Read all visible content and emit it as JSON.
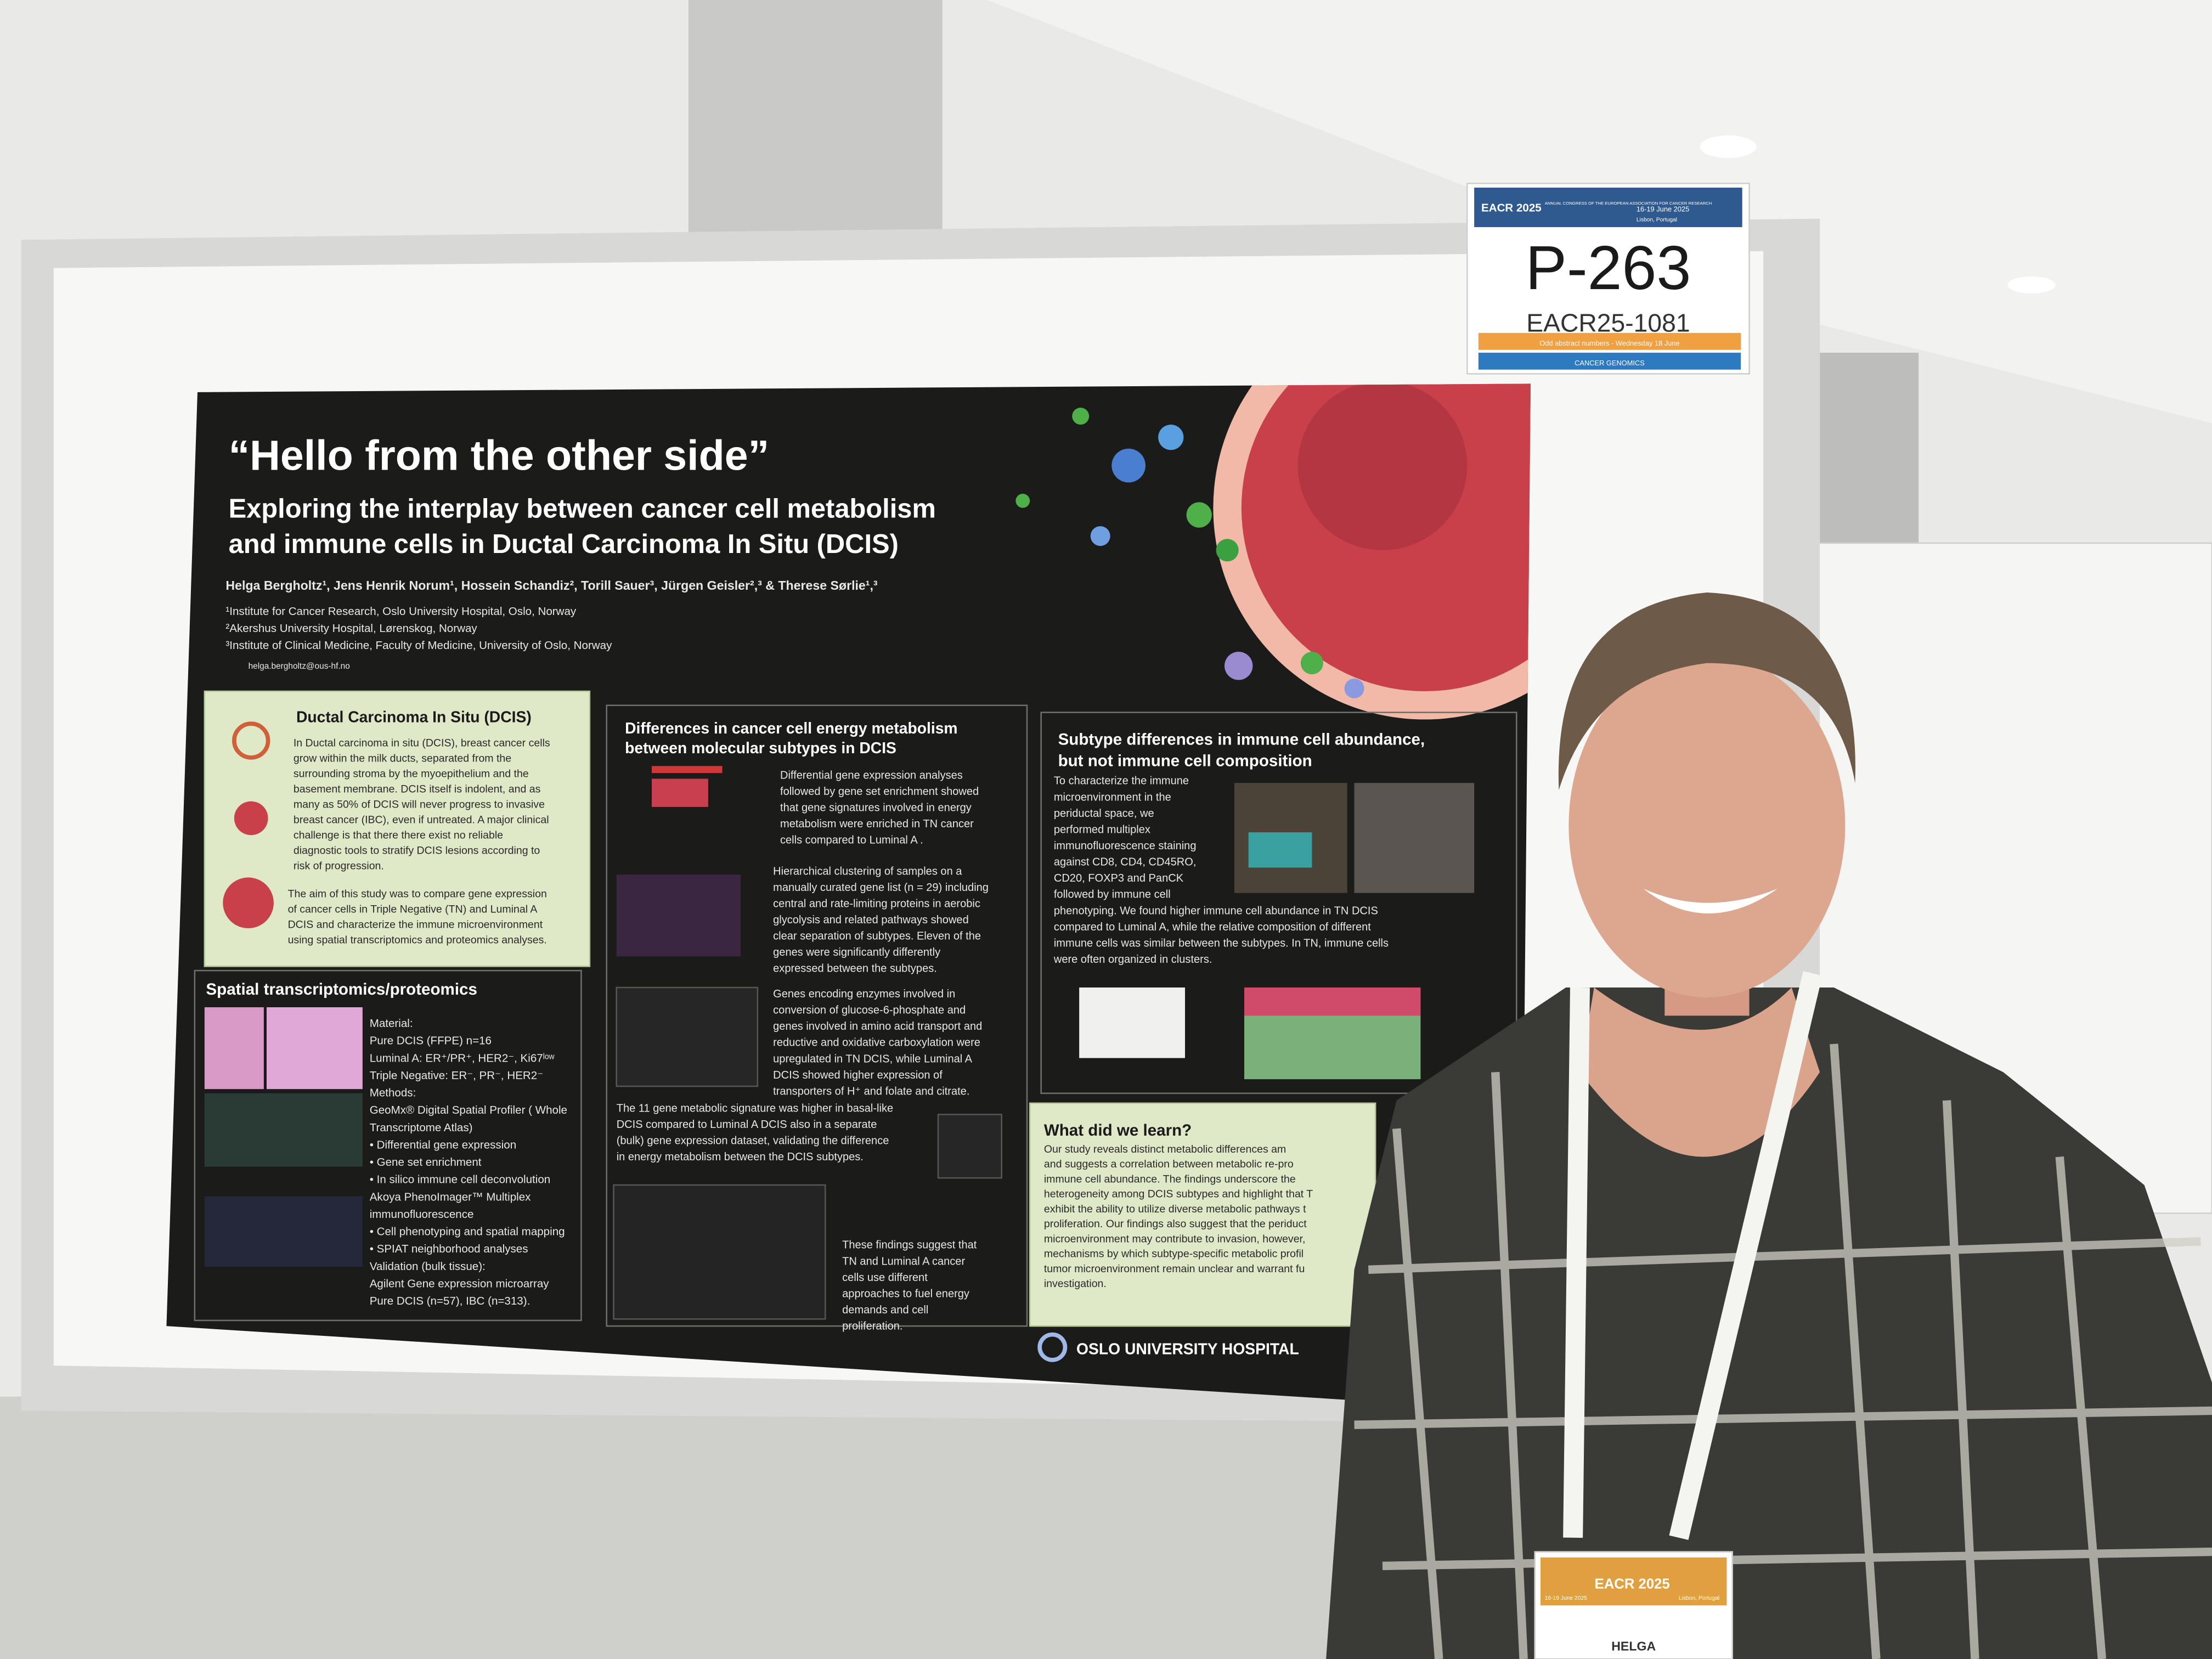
{
  "sign": {
    "logo": "EACR 2025",
    "congress": "ANNUAL CONGRESS OF THE EUROPEAN ASSOCIATION FOR CANCER RESEARCH",
    "dates": "16-19 June 2025",
    "place": "Lisbon, Portugal",
    "code": "P-263",
    "abstract": "EACR25-1081",
    "session": "Odd abstract numbers - Wednesday 18 June",
    "track": "CANCER GENOMICS"
  },
  "poster": {
    "title": "“Hello from the other side”",
    "subtitle": [
      "Exploring the interplay between cancer cell metabolism",
      "and immune cells in Ductal Carcinoma In Situ (DCIS)"
    ],
    "authors": "Helga Bergholtz¹, Jens Henrik Norum¹, Hossein Schandiz², Torill Sauer³, Jürgen Geisler²,³ & Therese Sørlie¹,³",
    "affiliations": [
      "¹Institute for Cancer Research, Oslo University Hospital, Oslo, Norway",
      "²Akershus University Hospital, Lørenskog, Norway",
      "³Institute of Clinical Medicine, Faculty of Medicine, University of Oslo, Norway"
    ],
    "email": "helga.bergholtz@ous-hf.no",
    "dcis": {
      "heading": "Ductal Carcinoma In Situ (DCIS)",
      "lines": [
        "In Ductal carcinoma in situ (DCIS), breast cancer cells",
        "grow within the milk ducts, separated from the",
        "surrounding stroma by the myoepithelium and the",
        "basement membrane. DCIS itself is indolent, and as",
        "many as 50% of DCIS will never progress to invasive",
        "breast cancer (IBC), even if untreated. A major clinical",
        "challenge is that there there exist no reliable",
        "diagnostic tools to stratify DCIS lesions according to",
        "risk of progression."
      ],
      "aim": [
        "The aim of this study was to compare gene expression",
        "of cancer cells in Triple Negative (TN) and Luminal A",
        "DCIS and characterize the immune microenvironment",
        "using spatial transcriptomics and proteomics analyses."
      ]
    },
    "spatial": {
      "heading": "Spatial transcriptomics/proteomics",
      "lines": [
        "Material:",
        "Pure DCIS (FFPE) n=16",
        "Luminal A: ER⁺/PR⁺, HER2⁻, Ki67ˡᵒʷ",
        "Triple Negative: ER⁻, PR⁻, HER2⁻",
        "Methods:",
        "GeoMx® Digital Spatial Profiler ( Whole",
        "Transcriptome Atlas)",
        "• Differential gene expression",
        "• Gene set enrichment",
        "• In silico immune cell deconvolution",
        "Akoya PhenoImager™ Multiplex",
        "immunofluorescence",
        "• Cell phenotyping and spatial mapping",
        "• SPIAT neighborhood analyses",
        "Validation (bulk tissue):",
        "Agilent Gene expression microarray",
        "Pure DCIS (n=57), IBC (n=313)."
      ]
    },
    "metabolism": {
      "heading": [
        "Differences in cancer cell energy metabolism",
        "between molecular subtypes in DCIS"
      ],
      "p1": [
        "Differential gene expression analyses",
        "followed by gene set enrichment showed",
        "that gene signatures involved in energy",
        "metabolism were enriched in TN cancer",
        "cells compared to Luminal A ."
      ],
      "p2": [
        "Hierarchical clustering of samples on a",
        "manually curated gene list (n = 29) including",
        "central and rate-limiting proteins in aerobic",
        "glycolysis and related pathways showed",
        "clear separation of subtypes. Eleven of the",
        "genes were significantly differently",
        "expressed between the subtypes."
      ],
      "p3": [
        "Genes encoding enzymes involved in",
        "conversion of glucose-6-phosphate and",
        "genes involved in amino acid transport and",
        "reductive and oxidative carboxylation were",
        "upregulated in TN DCIS, while Luminal A",
        "DCIS showed higher expression of",
        "transporters of H⁺ and folate and citrate."
      ],
      "p4": [
        "The 11 gene metabolic signature was higher in basal-like",
        "DCIS compared to Luminal A DCIS also in a separate",
        "(bulk) gene expression dataset, validating the difference",
        "in energy metabolism between the DCIS subtypes."
      ],
      "p5": [
        "These findings suggest that",
        "TN and Luminal A cancer",
        "cells use different",
        "approaches to fuel energy",
        "demands and cell",
        "proliferation."
      ]
    },
    "immune": {
      "heading": [
        "Subtype differences in immune cell abundance,",
        "but not immune cell composition"
      ],
      "lines": [
        "To characterize the immune",
        "microenvironment in the",
        "periductal space, we",
        "performed multiplex",
        "immunofluorescence staining",
        "against CD8, CD4, CD45RO,",
        "CD20, FOXP3 and PanCK",
        "followed by immune cell",
        "phenotyping. We found higher immune cell abundance in TN DCIS",
        "compared to Luminal A, while the relative composition of different",
        "immune cells was similar between the subtypes. In TN, immune cells",
        "were often organized in clusters."
      ]
    },
    "learn": {
      "heading": "What did we learn?",
      "lines": [
        "Our study reveals distinct metabolic differences am",
        "and suggests a correlation between metabolic re-pro",
        "immune cell abundance. The findings underscore the",
        "heterogeneity among DCIS subtypes and highlight that T",
        "exhibit the ability to utilize diverse metabolic pathways t",
        "proliferation. Our findings also suggest that the periduct",
        "microenvironment may contribute to invasion, however,",
        "mechanisms by which subtype-specific metabolic profil",
        "tumor microenvironment remain unclear and warrant fu",
        "investigation."
      ]
    },
    "logo": "OSLO UNIVERSITY HOSPITAL"
  },
  "badge": {
    "logo": "EACR 2025",
    "dates": "16-19 June 2025",
    "place": "Lisbon, Portugal",
    "name": "HELGA"
  }
}
